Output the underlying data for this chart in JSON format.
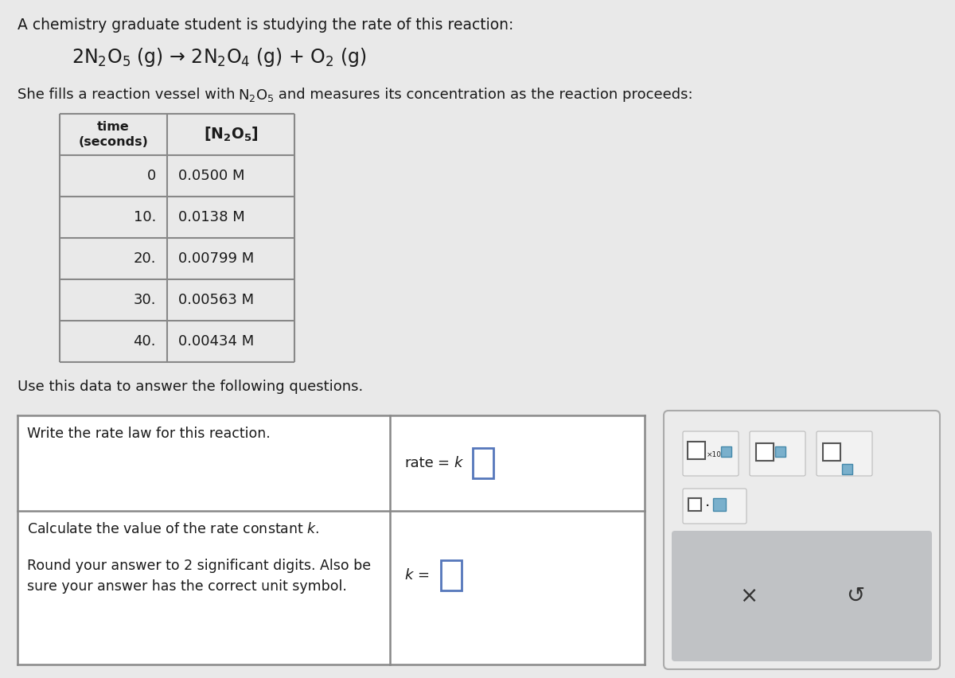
{
  "background_color": "#e9e9e9",
  "title_text": "A chemistry graduate student is studying the rate of this reaction:",
  "description_line": "She fills a reaction vessel with N₂O₅ and measures its concentration as the reaction proceeds:",
  "table_times": [
    "0",
    "10.",
    "20.",
    "30.",
    "40."
  ],
  "table_concs": [
    "0.0500 M",
    "0.0138 M",
    "0.00799 M",
    "0.00563 M",
    "0.00434 M"
  ],
  "use_data_text": "Use this data to answer the following questions.",
  "q1_left": "Write the rate law for this reaction.",
  "q2_left_line1": "Calculate the value of the rate constant k.",
  "q2_left_line2": "Round your answer to 2 significant digits. Also be\nsure your answer has the correct unit symbol.",
  "font_color": "#1a1a1a",
  "table_border_color": "#888888",
  "panel_border_color": "#888888",
  "input_box_color": "#5577bb",
  "toolbar_bg": "#ebebeb",
  "toolbar_border": "#aaaaaa",
  "gray_bar_color": "#c0c2c5",
  "icon_outline_color": "#555555",
  "icon_fill_color": "#7ab0cc"
}
